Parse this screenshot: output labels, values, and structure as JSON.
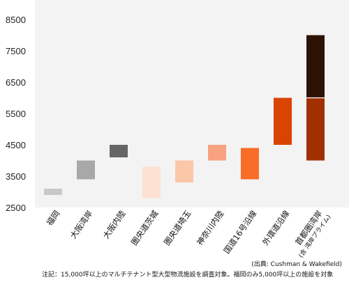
{
  "chart_data": {
    "type": "bar",
    "subtype": "floating-range",
    "ylim": [
      2500,
      9000
    ],
    "yticks": [
      2500,
      3500,
      4500,
      5500,
      6500,
      7500,
      8500
    ],
    "grid": false,
    "categories": [
      {
        "label": "福岡",
        "sublabel": "",
        "low": 2900,
        "high": 3100,
        "color": "#c8c8c8"
      },
      {
        "label": "大阪湾岸",
        "sublabel": "",
        "low": 3400,
        "high": 4000,
        "color": "#a8a8a8"
      },
      {
        "label": "大阪内陸",
        "sublabel": "",
        "low": 4100,
        "high": 4500,
        "color": "#666666"
      },
      {
        "label": "圏央道茨城",
        "sublabel": "",
        "low": 2800,
        "high": 3800,
        "color": "#fde1d3"
      },
      {
        "label": "圏央道埼玉",
        "sublabel": "",
        "low": 3300,
        "high": 4000,
        "color": "#fbc7a9"
      },
      {
        "label": "神奈川内陸",
        "sublabel": "",
        "low": 4000,
        "high": 4500,
        "color": "#f8a281"
      },
      {
        "label": "国道16号沿線",
        "sublabel": "",
        "low": 3400,
        "high": 4400,
        "color": "#f96d27"
      },
      {
        "label": "外環道沿線",
        "sublabel": "",
        "low": 4500,
        "high": 6000,
        "color": "#d94400"
      },
      {
        "label": "首都圏湾岸",
        "sublabel": "(含 湾岸プライム)",
        "segments": [
          {
            "low": 4000,
            "high": 6000,
            "color": "#a03000"
          },
          {
            "low": 6000,
            "high": 8000,
            "color": "#2c1204"
          }
        ]
      }
    ]
  },
  "source": "(出典: Cushman & Wakefield)",
  "note": "注記：15,000坪以上のマルチテナント型大型物流施設を調査対象。福岡のみ5,000坪以上の施設を対象"
}
